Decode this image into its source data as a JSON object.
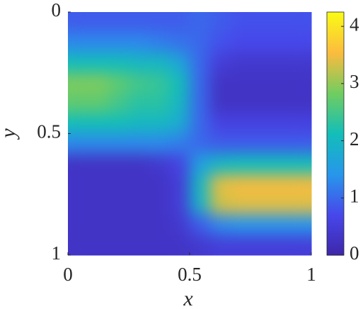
{
  "chart_data": {
    "type": "heatmap",
    "xlabel": "x",
    "ylabel": "y",
    "x": [
      0.04,
      0.125,
      0.21,
      0.29,
      0.375,
      0.46,
      0.54,
      0.625,
      0.71,
      0.79,
      0.875,
      0.96
    ],
    "y": [
      0.04,
      0.125,
      0.21,
      0.29,
      0.375,
      0.46,
      0.54,
      0.625,
      0.71,
      0.79,
      0.875,
      0.96
    ],
    "z": [
      [
        0.9,
        0.9,
        0.9,
        0.9,
        0.9,
        0.9,
        1.0,
        0.9,
        0.8,
        0.8,
        0.8,
        0.8
      ],
      [
        1.3,
        1.3,
        1.3,
        1.3,
        1.2,
        1.1,
        1.0,
        0.8,
        0.7,
        0.7,
        0.7,
        0.7
      ],
      [
        2.1,
        2.1,
        2.1,
        2.0,
        2.0,
        1.7,
        1.0,
        0.5,
        0.4,
        0.4,
        0.4,
        0.4
      ],
      [
        2.9,
        2.9,
        2.7,
        2.5,
        2.4,
        2.1,
        1.0,
        0.3,
        0.3,
        0.3,
        0.3,
        0.3
      ],
      [
        2.7,
        2.7,
        2.5,
        2.3,
        2.3,
        2.0,
        1.0,
        0.3,
        0.3,
        0.3,
        0.3,
        0.3
      ],
      [
        2.1,
        2.1,
        2.1,
        2.0,
        2.0,
        1.8,
        1.0,
        0.6,
        0.6,
        0.6,
        0.6,
        0.6
      ],
      [
        1.3,
        1.3,
        1.3,
        1.3,
        1.3,
        1.2,
        1.0,
        0.9,
        0.9,
        0.9,
        0.9,
        0.9
      ],
      [
        0.3,
        0.3,
        0.3,
        0.3,
        0.4,
        0.6,
        1.6,
        2.0,
        2.1,
        2.1,
        2.1,
        2.1
      ],
      [
        0.3,
        0.3,
        0.3,
        0.3,
        0.3,
        0.5,
        2.0,
        3.4,
        3.5,
        3.5,
        3.5,
        3.5
      ],
      [
        0.3,
        0.3,
        0.3,
        0.3,
        0.3,
        0.5,
        1.9,
        3.3,
        3.4,
        3.4,
        3.4,
        3.4
      ],
      [
        0.3,
        0.3,
        0.3,
        0.3,
        0.3,
        0.4,
        0.9,
        1.3,
        1.4,
        1.4,
        1.4,
        1.4
      ],
      [
        0.3,
        0.3,
        0.3,
        0.3,
        0.3,
        0.3,
        0.4,
        0.5,
        0.5,
        0.5,
        0.5,
        0.5
      ]
    ],
    "xlim": [
      0,
      1
    ],
    "ylim": [
      0,
      1
    ],
    "y_reversed": true,
    "xticks": [
      0,
      {
        "value": 0.5,
        "label": "0.5"
      },
      1
    ],
    "yticks": [
      0,
      {
        "value": 0.5,
        "label": "0.5"
      },
      1
    ],
    "colormap": "parula",
    "clim": [
      0,
      4.25
    ],
    "cticks": [
      0,
      1,
      2,
      3,
      4
    ]
  }
}
